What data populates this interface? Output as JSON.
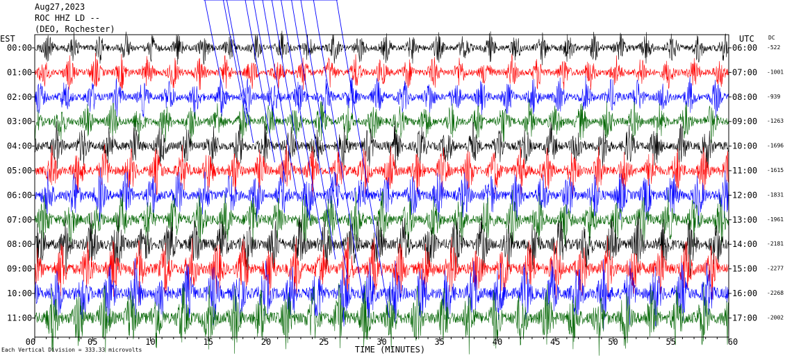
{
  "header": {
    "date": "Aug27,2023",
    "station": "ROC HHZ LD --",
    "location": "(DEO, Rochester)"
  },
  "left_zone": "EST",
  "right_zone": "UTC",
  "dc_label": "DC",
  "footnote": "Each Vertical Division = 333.33 microvolts",
  "chart_data": {
    "type": "line",
    "title": "",
    "xlabel": "TIME (MINUTES)",
    "xlim": [
      0,
      60
    ],
    "x_ticks": [
      "00",
      "05",
      "10",
      "15",
      "20",
      "25",
      "30",
      "35",
      "40",
      "45",
      "50",
      "55",
      "60"
    ],
    "rows": [
      {
        "est": "00:00",
        "utc": "06:00",
        "dc": "-522",
        "color": "#000000"
      },
      {
        "est": "01:00",
        "utc": "07:00",
        "dc": "-1001",
        "color": "#ff0000"
      },
      {
        "est": "02:00",
        "utc": "08:00",
        "dc": "-939",
        "color": "#0000ff"
      },
      {
        "est": "03:00",
        "utc": "09:00",
        "dc": "-1263",
        "color": "#006400"
      },
      {
        "est": "04:00",
        "utc": "10:00",
        "dc": "-1696",
        "color": "#000000"
      },
      {
        "est": "05:00",
        "utc": "11:00",
        "dc": "-1615",
        "color": "#ff0000"
      },
      {
        "est": "06:00",
        "utc": "12:00",
        "dc": "-1831",
        "color": "#0000ff"
      },
      {
        "est": "07:00",
        "utc": "13:00",
        "dc": "-1961",
        "color": "#006400"
      },
      {
        "est": "08:00",
        "utc": "14:00",
        "dc": "-2181",
        "color": "#000000"
      },
      {
        "est": "09:00",
        "utc": "15:00",
        "dc": "-2277",
        "color": "#ff0000"
      },
      {
        "est": "10:00",
        "utc": "16:00",
        "dc": "-2268",
        "color": "#0000ff"
      },
      {
        "est": "11:00",
        "utc": "17:00",
        "dc": "-2002",
        "color": "#006400"
      }
    ]
  }
}
